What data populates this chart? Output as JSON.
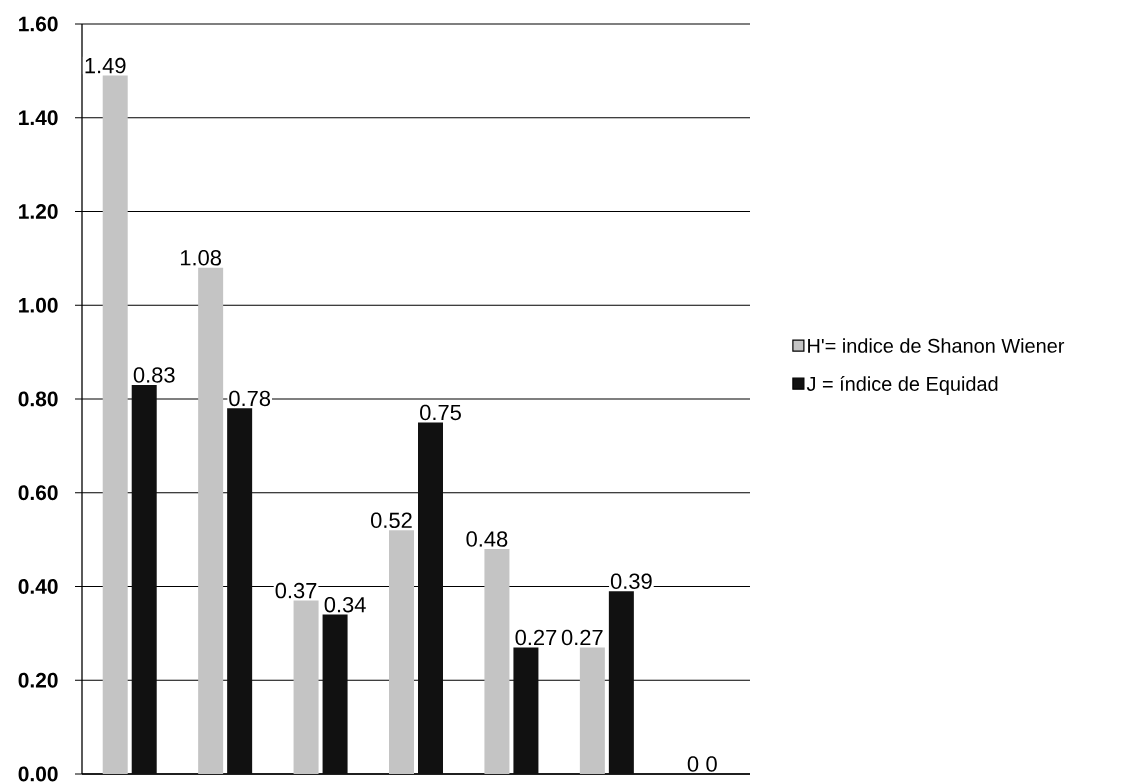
{
  "chart_data": {
    "type": "bar",
    "categories": [
      null,
      null,
      null,
      null,
      null,
      null,
      null
    ],
    "series": [
      {
        "name": "H'= indice de Shanon Wiener",
        "color": "#c4c4c4",
        "values": [
          1.49,
          1.08,
          0.37,
          0.52,
          0.48,
          0.27,
          0
        ]
      },
      {
        "name": "J = índice de Equidad",
        "color": "#111111",
        "values": [
          0.83,
          0.78,
          0.34,
          0.75,
          0.27,
          0.39,
          0
        ]
      }
    ],
    "ylim": [
      0,
      1.6
    ],
    "yticks": [
      {
        "value": 0,
        "label": "0.00"
      },
      {
        "value": 0.2,
        "label": "0.20"
      },
      {
        "value": 0.4,
        "label": "0.40"
      },
      {
        "value": 0.6,
        "label": "0.60"
      },
      {
        "value": 0.8,
        "label": "0.80"
      },
      {
        "value": 1.0,
        "label": "1.00"
      },
      {
        "value": 1.2,
        "label": "1.20"
      },
      {
        "value": 1.4,
        "label": "1.40"
      },
      {
        "value": 1.6,
        "label": "1.60"
      }
    ],
    "grid": "y",
    "legend": "right",
    "data_labels": true
  }
}
